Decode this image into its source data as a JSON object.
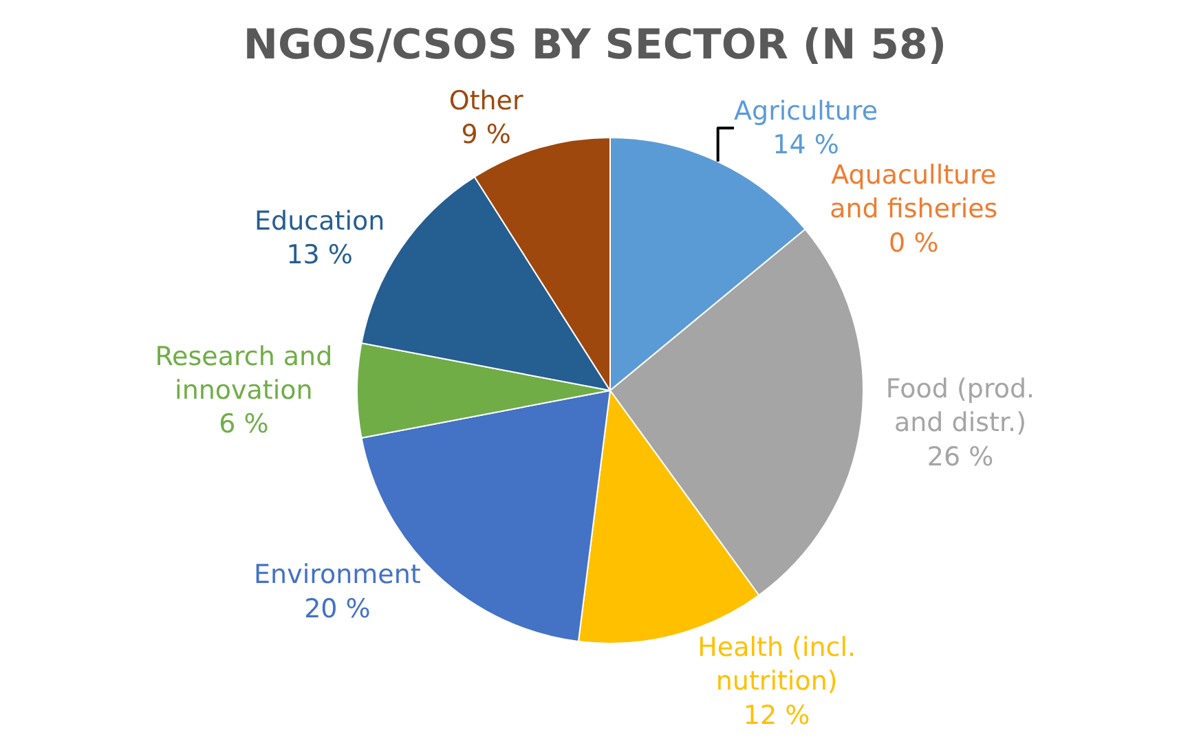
{
  "chart_data": {
    "type": "pie",
    "title": "NGOS/CSOS BY SECTOR (N 58)",
    "categories": [
      "Agriculture",
      "Aquacullture and fisheries",
      "Food (prod. and distr.)",
      "Health (incl. nutrition)",
      "Environment",
      "Research and innovation",
      "Education",
      "Other"
    ],
    "values": [
      14,
      0,
      26,
      12,
      20,
      6,
      13,
      9
    ],
    "value_labels": [
      "14 %",
      "0 %",
      "26 %",
      "12 %",
      "20 %",
      "6 %",
      "13 %",
      "9 %"
    ],
    "colors": [
      "#5b9bd5",
      "#ed7d31",
      "#a5a5a5",
      "#ffc000",
      "#4472c4",
      "#70ad47",
      "#255e91",
      "#9e480e"
    ],
    "legend": false
  }
}
